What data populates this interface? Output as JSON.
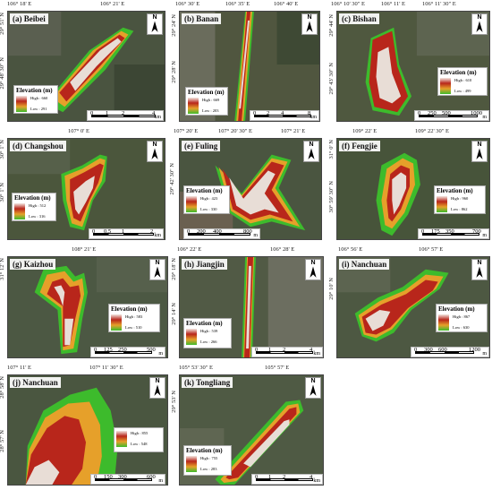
{
  "colors": {
    "high": "#f2e6e0",
    "mid": "#b8261b",
    "low": "#3dbb2c",
    "veg": "#3e4a32"
  },
  "panels": [
    {
      "id": "a",
      "title": "(a) Beibei",
      "top": [
        "106° 18' E",
        "106° 21' E"
      ],
      "left": [
        "29° 51' N",
        "29° 48' 30\" N"
      ],
      "legend": {
        "title": "Elevation (m)",
        "high": "High : 660",
        "low": "Low : 291"
      },
      "scale": {
        "ticks": [
          "0",
          "1",
          "2",
          "4"
        ],
        "unit": "km"
      }
    },
    {
      "id": "b",
      "title": "(b) Banan",
      "top": [
        "106° 30' E",
        "106° 35' E",
        "106° 40' E"
      ],
      "left": [
        "29° 24' N",
        "29° 28' N"
      ],
      "legend": {
        "title": "Elevation (m)",
        "high": "High : 669",
        "low": "Low : 203"
      },
      "scale": {
        "ticks": [
          "0",
          "2",
          "4",
          "8"
        ],
        "unit": "km"
      }
    },
    {
      "id": "c",
      "title": "(c) Bishan",
      "top": [
        "106° 10' 30\" E",
        "106° 11' E",
        "106° 11' 30\" E"
      ],
      "left": [
        "29° 44' N",
        "29° 43' 30\" N"
      ],
      "legend": {
        "title": "Elevation (m)",
        "high": "High : 610",
        "low": "Low : 499"
      },
      "scale": {
        "ticks": [
          "0",
          "250",
          "500",
          "1000"
        ],
        "unit": "m"
      }
    },
    {
      "id": "d",
      "title": "(d) Changshou",
      "top": [
        "107° 0' E"
      ],
      "left": [
        "30° 1' N",
        "30° 1' N"
      ],
      "legend": {
        "title": "Elevation (m)",
        "high": "High : 512",
        "low": "Low : 316"
      },
      "scale": {
        "ticks": [
          "0",
          "0.5",
          "1",
          "2"
        ],
        "unit": "km"
      }
    },
    {
      "id": "e",
      "title": "(e) Fuling",
      "top": [
        "107° 20' E",
        "107° 20' 30\" E",
        "107° 21' E"
      ],
      "left": [
        "29° 42' 30\" N"
      ],
      "legend": {
        "title": "Elevation (m)",
        "high": "High : 423",
        "low": "Low : 330"
      },
      "scale": {
        "ticks": [
          "0",
          "200",
          "400",
          "800"
        ],
        "unit": "m"
      }
    },
    {
      "id": "f",
      "title": "(f) Fengjie",
      "top": [
        "109° 22' E",
        "109° 22' 30\" E"
      ],
      "left": [
        "31° 0' N",
        "30° 59' 30\" N"
      ],
      "legend": {
        "title": "Elevation (m)",
        "high": "High : 960",
        "low": "Low : 862"
      },
      "scale": {
        "ticks": [
          "0",
          "175",
          "350",
          "700"
        ],
        "unit": "m"
      }
    },
    {
      "id": "g",
      "title": "(g) Kaizhou",
      "top": [
        "108° 21' E"
      ],
      "left": [
        "31° 12' N"
      ],
      "legend": {
        "title": "Elevation (m)",
        "high": "High : 583",
        "low": "Low : 510"
      },
      "scale": {
        "ticks": [
          "0",
          "125",
          "250",
          "500"
        ],
        "unit": "m"
      }
    },
    {
      "id": "h",
      "title": "(h) Jiangjin",
      "top": [
        "106° 22' E",
        "106° 28' E"
      ],
      "left": [
        "29° 18' N",
        "29° 14' N"
      ],
      "legend": {
        "title": "Elevation (m)",
        "high": "High : 539",
        "low": "Low : 266"
      },
      "scale": {
        "ticks": [
          "0",
          "1",
          "2",
          "4"
        ],
        "unit": "km"
      }
    },
    {
      "id": "i",
      "title": "(i) Nanchuan",
      "top": [
        "106° 56' E",
        "106° 57' E"
      ],
      "left": [
        "29° 10' N"
      ],
      "legend": {
        "title": "Elevation (m)",
        "high": "High : 867",
        "low": "Low : 630"
      },
      "scale": {
        "ticks": [
          "0",
          "300",
          "600",
          "1200"
        ],
        "unit": "m"
      }
    },
    {
      "id": "j",
      "title": "(j) Nanchuan",
      "top": [
        "107° 11' E",
        "107° 11' 30\" E"
      ],
      "left": [
        "28° 58' N",
        "28° 57' N"
      ],
      "legend": {
        "title": "",
        "high": "High : 855",
        "low": "Low : 548"
      },
      "scale": {
        "ticks": [
          "0",
          "150",
          "300",
          "600"
        ],
        "unit": "m"
      }
    },
    {
      "id": "k",
      "title": "(k) Tongliang",
      "top": [
        "105° 53' 30\" E",
        "105° 57' E"
      ],
      "left": [
        "29° 53' N"
      ],
      "legend": {
        "title": "Elevation (m)",
        "high": "High : 755",
        "low": "Low : 283"
      },
      "scale": {
        "ticks": [
          "0",
          "1",
          "2",
          "4"
        ],
        "unit": "km"
      }
    }
  ]
}
